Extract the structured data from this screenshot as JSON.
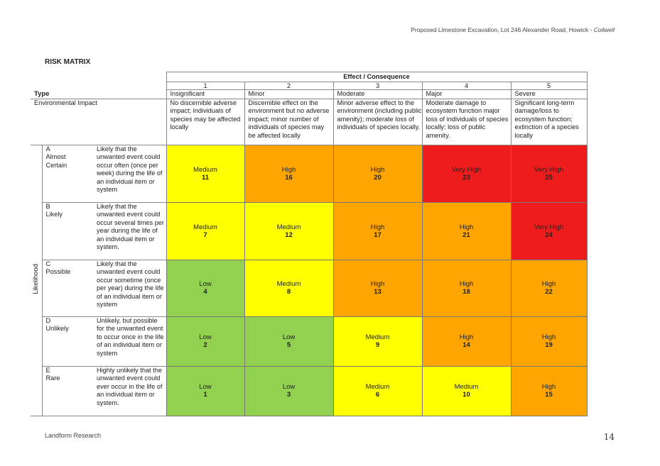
{
  "header": {
    "text": "Proposed Limestone Excavation, Lot 246 Alexander Road, Howick - ",
    "italic": "Coilwell"
  },
  "title": "RISK MATRIX",
  "effect_header": "Effect / Consequence",
  "type_label": "Type",
  "env_label": "Environmental Impact",
  "likelihood_label": "Likelihood",
  "consequences": [
    {
      "num": "1",
      "name": "Insignificant",
      "desc": "No discernible adverse impact; individuals of species may be affected locally"
    },
    {
      "num": "2",
      "name": "Minor",
      "desc": "Discernible effect on the environment but no adverse impact; minor number of individuals  of species may be affected locally"
    },
    {
      "num": "3",
      "name": "Moderate",
      "desc": "Minor adverse effect to the environment (including public amenity); moderate loss of individuals of species locally."
    },
    {
      "num": "4",
      "name": "Major",
      "desc": "Moderate damage to ecosystem function major loss of individuals of species locally; loss of public amenity."
    },
    {
      "num": "5",
      "name": "Severe",
      "desc": "Significant long-term damage/loss to ecosystem function; extinction of a species locally"
    }
  ],
  "likelihoods": [
    {
      "code": "A",
      "name": "Almost Certain",
      "desc": "Likely that the unwanted event could occur often (once per week) during the life of an individual item or system"
    },
    {
      "code": "B",
      "name": "Likely",
      "desc": "Likely that the unwanted event could occur several times per year during the life of an individual item or system."
    },
    {
      "code": "C",
      "name": "Possible",
      "desc": "Likely that the unwanted event could occur sometime (once per year) during the life of an individual item or system"
    },
    {
      "code": "D",
      "name": "Unlikely",
      "desc": "Unlikely, but possible for the unwanted event to occur once in the life of an individual item or system"
    },
    {
      "code": "E",
      "name": "Rare",
      "desc": "Highly unlikely that the unwanted event could ever occur in the life of an individual item or system."
    }
  ],
  "matrix": [
    [
      {
        "level": "Medium",
        "score": "11"
      },
      {
        "level": "High",
        "score": "16"
      },
      {
        "level": "High",
        "score": "20"
      },
      {
        "level": "Very High",
        "score": "23"
      },
      {
        "level": "Very High",
        "score": "25"
      }
    ],
    [
      {
        "level": "Medium",
        "score": "7"
      },
      {
        "level": "Medium",
        "score": "12"
      },
      {
        "level": "High",
        "score": "17"
      },
      {
        "level": "High",
        "score": "21"
      },
      {
        "level": "Very High",
        "score": "24"
      }
    ],
    [
      {
        "level": "Low",
        "score": "4"
      },
      {
        "level": "Medium",
        "score": "8"
      },
      {
        "level": "High",
        "score": "13"
      },
      {
        "level": "High",
        "score": "18"
      },
      {
        "level": "High",
        "score": "22"
      }
    ],
    [
      {
        "level": "Low",
        "score": "2"
      },
      {
        "level": "Low",
        "score": "5"
      },
      {
        "level": "Medium",
        "score": "9"
      },
      {
        "level": "High",
        "score": "14"
      },
      {
        "level": "High",
        "score": "19"
      }
    ],
    [
      {
        "level": "Low",
        "score": "1"
      },
      {
        "level": "Low",
        "score": "3"
      },
      {
        "level": "Medium",
        "score": "6"
      },
      {
        "level": "Medium",
        "score": "10"
      },
      {
        "level": "High",
        "score": "15"
      }
    ]
  ],
  "level_colors": {
    "Low": "#92d050",
    "Medium": "#ffff00",
    "High": "#ffa500",
    "Very High": "#ee1c1c"
  },
  "footer": {
    "left": "Landform Research",
    "page": "14"
  }
}
